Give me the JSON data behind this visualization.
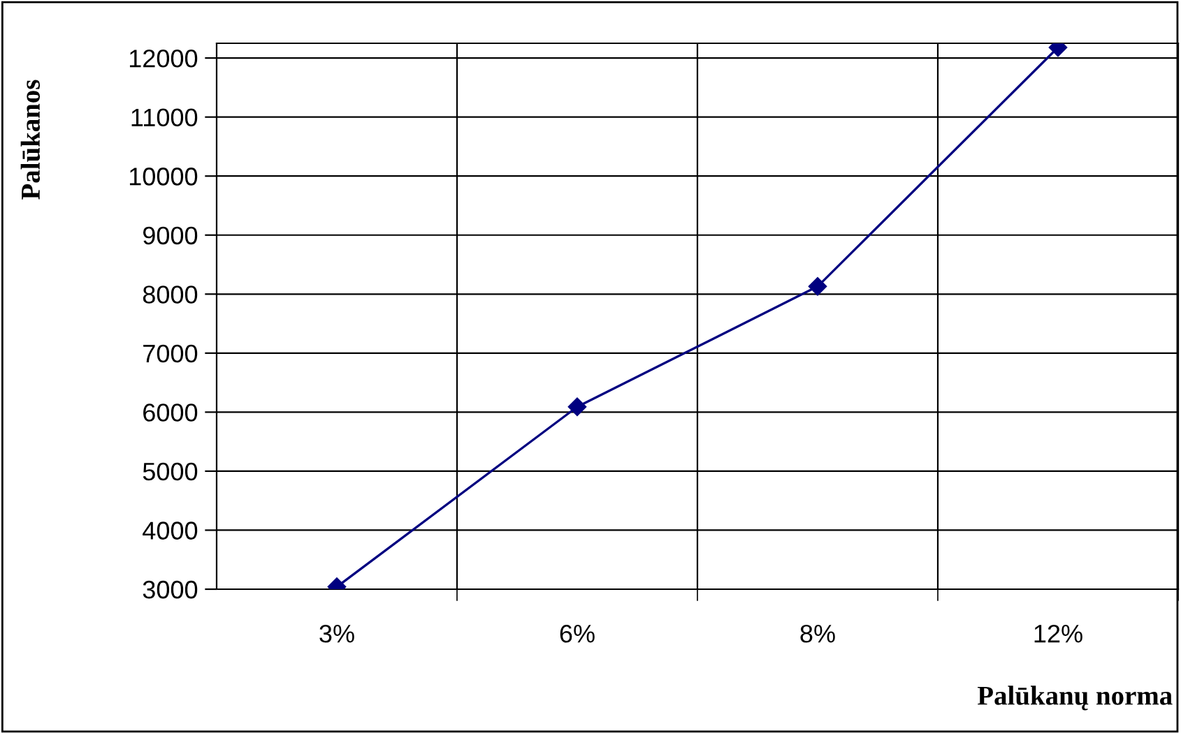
{
  "chart_data": {
    "type": "line",
    "xlabel": "Palūkanų norma",
    "ylabel": "Palūkanos",
    "categories": [
      "3%",
      "6%",
      "8%",
      "12%"
    ],
    "series": [
      {
        "color": "#000080",
        "values": [
          3040,
          6090,
          8130,
          12180
        ]
      }
    ],
    "ylim": [
      3000,
      12250
    ],
    "yticks": [
      3000,
      4000,
      5000,
      6000,
      7000,
      8000,
      9000,
      10000,
      11000,
      12000
    ],
    "grid": true,
    "marker": "diamond",
    "line_style": "solid",
    "legend": false
  }
}
